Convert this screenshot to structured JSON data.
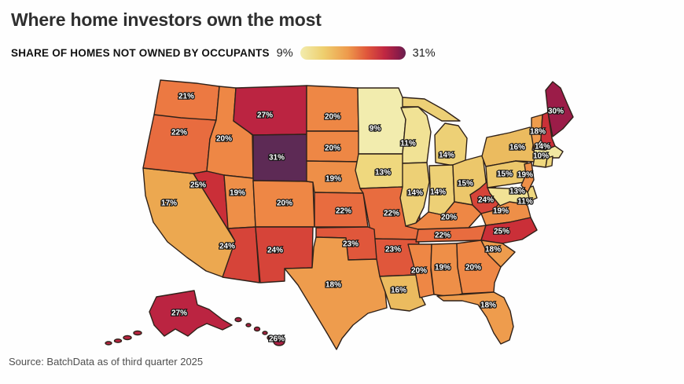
{
  "header": {
    "title": "Where home investors own the most",
    "subtitle": "SHARE OF HOMES NOT OWNED BY OCCUPANTS",
    "legend_min": "9%",
    "legend_max": "31%"
  },
  "source": "Source: BatchData as of third quarter 2025",
  "chart_data": {
    "type": "choropleth",
    "title": "Where home investors own the most",
    "metric": "Share of homes not owned by occupants",
    "range_min": "9%",
    "range_max": "31%",
    "legend_gradient": [
      "#f2ecae",
      "#eecf6e",
      "#ee9a4c",
      "#e0573b",
      "#c02742",
      "#8c1b49",
      "#65214f"
    ],
    "states": [
      {
        "id": "WA",
        "name": "Washington",
        "value": "21%",
        "fill": "#ec7942"
      },
      {
        "id": "OR",
        "name": "Oregon",
        "value": "22%",
        "fill": "#e86c3f"
      },
      {
        "id": "CA",
        "name": "California",
        "value": "17%",
        "fill": "#eca850"
      },
      {
        "id": "NV",
        "name": "Nevada",
        "value": "25%",
        "fill": "#ca2f38"
      },
      {
        "id": "ID",
        "name": "Idaho",
        "value": "20%",
        "fill": "#ee8745"
      },
      {
        "id": "MT",
        "name": "Montana",
        "value": "27%",
        "fill": "#bb2441"
      },
      {
        "id": "WY",
        "name": "Wyoming",
        "value": "31%",
        "fill": "#5d2a55"
      },
      {
        "id": "UT",
        "name": "Utah",
        "value": "19%",
        "fill": "#ee8f48"
      },
      {
        "id": "CO",
        "name": "Colorado",
        "value": "20%",
        "fill": "#ee8745"
      },
      {
        "id": "AZ",
        "name": "Arizona",
        "value": "24%",
        "fill": "#d64439"
      },
      {
        "id": "NM",
        "name": "New Mexico",
        "value": "24%",
        "fill": "#d64439"
      },
      {
        "id": "ND",
        "name": "North Dakota",
        "value": "20%",
        "fill": "#ee8745"
      },
      {
        "id": "SD",
        "name": "South Dakota",
        "value": "20%",
        "fill": "#ee8745"
      },
      {
        "id": "NE",
        "name": "Nebraska",
        "value": "19%",
        "fill": "#ee8f48"
      },
      {
        "id": "KS",
        "name": "Kansas",
        "value": "22%",
        "fill": "#e86c3f"
      },
      {
        "id": "OK",
        "name": "Oklahoma",
        "value": "23%",
        "fill": "#e0573b"
      },
      {
        "id": "TX",
        "name": "Texas",
        "value": "18%",
        "fill": "#ee9c4d"
      },
      {
        "id": "MN",
        "name": "Minnesota",
        "value": "9%",
        "fill": "#f2ecae"
      },
      {
        "id": "IA",
        "name": "Iowa",
        "value": "13%",
        "fill": "#efd87e"
      },
      {
        "id": "MO",
        "name": "Missouri",
        "value": "22%",
        "fill": "#e86c3f"
      },
      {
        "id": "AR",
        "name": "Arkansas",
        "value": "23%",
        "fill": "#e0573b"
      },
      {
        "id": "LA",
        "name": "Louisiana",
        "value": "16%",
        "fill": "#ebbb5f"
      },
      {
        "id": "WI",
        "name": "Wisconsin",
        "value": "11%",
        "fill": "#f1e295"
      },
      {
        "id": "MI",
        "name": "Michigan",
        "value": "14%",
        "fill": "#edd076"
      },
      {
        "id": "IL",
        "name": "Illinois",
        "value": "14%",
        "fill": "#edd076"
      },
      {
        "id": "IN",
        "name": "Indiana",
        "value": "14%",
        "fill": "#edd076"
      },
      {
        "id": "OH",
        "name": "Ohio",
        "value": "15%",
        "fill": "#ecc76b"
      },
      {
        "id": "KY",
        "name": "Kentucky",
        "value": "20%",
        "fill": "#ee8745"
      },
      {
        "id": "TN",
        "name": "Tennessee",
        "value": "22%",
        "fill": "#e86c3f"
      },
      {
        "id": "MS",
        "name": "Mississippi",
        "value": "20%",
        "fill": "#ee8745"
      },
      {
        "id": "AL",
        "name": "Alabama",
        "value": "19%",
        "fill": "#ee8f48"
      },
      {
        "id": "GA",
        "name": "Georgia",
        "value": "20%",
        "fill": "#ee8745"
      },
      {
        "id": "FL",
        "name": "Florida",
        "value": "18%",
        "fill": "#ee9c4d"
      },
      {
        "id": "SC",
        "name": "South Carolina",
        "value": "18%",
        "fill": "#ee9c4d"
      },
      {
        "id": "NC",
        "name": "North Carolina",
        "value": "25%",
        "fill": "#ca2f38"
      },
      {
        "id": "VA",
        "name": "Virginia",
        "value": "19%",
        "fill": "#ee8f48"
      },
      {
        "id": "WV",
        "name": "West Virginia",
        "value": "24%",
        "fill": "#d64439"
      },
      {
        "id": "MD",
        "name": "Maryland",
        "value": "11%",
        "fill": "#f1e295"
      },
      {
        "id": "DE",
        "name": "Delaware",
        "value": "13%",
        "fill": "#efd87e"
      },
      {
        "id": "NJ",
        "name": "New Jersey",
        "value": "19%",
        "fill": "#ee8f48"
      },
      {
        "id": "PA",
        "name": "Pennsylvania",
        "value": "15%",
        "fill": "#ecc76b"
      },
      {
        "id": "NY",
        "name": "New York",
        "value": "16%",
        "fill": "#ebbb5f"
      },
      {
        "id": "VT",
        "name": "Vermont",
        "value": "18%",
        "fill": "#ee9c4d"
      },
      {
        "id": "NH",
        "name": "New Hampshire",
        "value": "14%",
        "fill": "#ca3038"
      },
      {
        "id": "MA",
        "name": "Massachusetts",
        "value": "10%",
        "fill": "#f2e8a2"
      },
      {
        "id": "CT",
        "name": "Connecticut",
        "fill": "#efd87e"
      },
      {
        "id": "RI",
        "name": "Rhode Island",
        "fill": "#efd87e"
      },
      {
        "id": "ME",
        "name": "Maine",
        "value": "30%",
        "fill": "#9b1c48"
      },
      {
        "id": "AK",
        "name": "Alaska",
        "value": "27%",
        "fill": "#bb2441"
      },
      {
        "id": "HI",
        "name": "Hawaii",
        "value": "26%",
        "fill": "#ab2043"
      }
    ]
  }
}
